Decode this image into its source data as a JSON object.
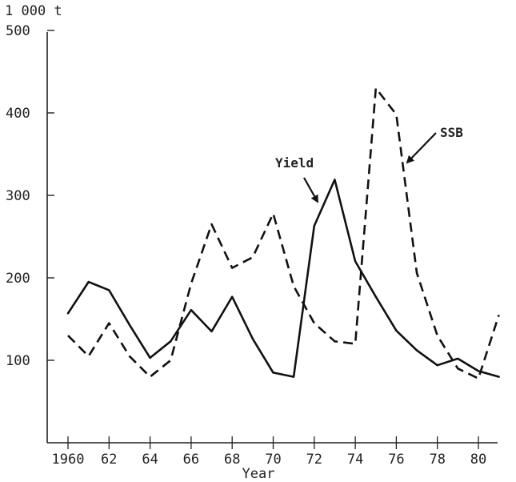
{
  "chart_data": {
    "type": "line",
    "unit_label": "1 000 t",
    "xlabel": "Year",
    "x": [
      1960,
      1961,
      1962,
      1963,
      1964,
      1965,
      1966,
      1967,
      1968,
      1969,
      1970,
      1971,
      1972,
      1973,
      1974,
      1975,
      1976,
      1977,
      1978,
      1979,
      1980,
      1981
    ],
    "x_tick_labels": [
      "1960",
      "62",
      "64",
      "66",
      "68",
      "70",
      "72",
      "74",
      "76",
      "78",
      "80"
    ],
    "y_tick_labels": [
      "100",
      "200",
      "300",
      "400",
      "500"
    ],
    "xlim": [
      1960,
      1981
    ],
    "ylim": [
      0,
      500
    ],
    "grid": false,
    "series": [
      {
        "name": "Yield",
        "line_style": "solid",
        "values": [
          157,
          195,
          185,
          143,
          103,
          123,
          161,
          135,
          177,
          126,
          85,
          80,
          263,
          319,
          220,
          177,
          136,
          112,
          94,
          102,
          87,
          80
        ]
      },
      {
        "name": "SSB",
        "line_style": "dashed",
        "values": [
          130,
          105,
          145,
          105,
          80,
          100,
          193,
          265,
          212,
          225,
          278,
          190,
          145,
          123,
          120,
          430,
          398,
          206,
          130,
          90,
          78,
          155
        ]
      }
    ],
    "annotations": [
      {
        "text": "Yield",
        "points_to_series": "Yield"
      },
      {
        "text": "SSB",
        "points_to_series": "SSB"
      }
    ]
  }
}
